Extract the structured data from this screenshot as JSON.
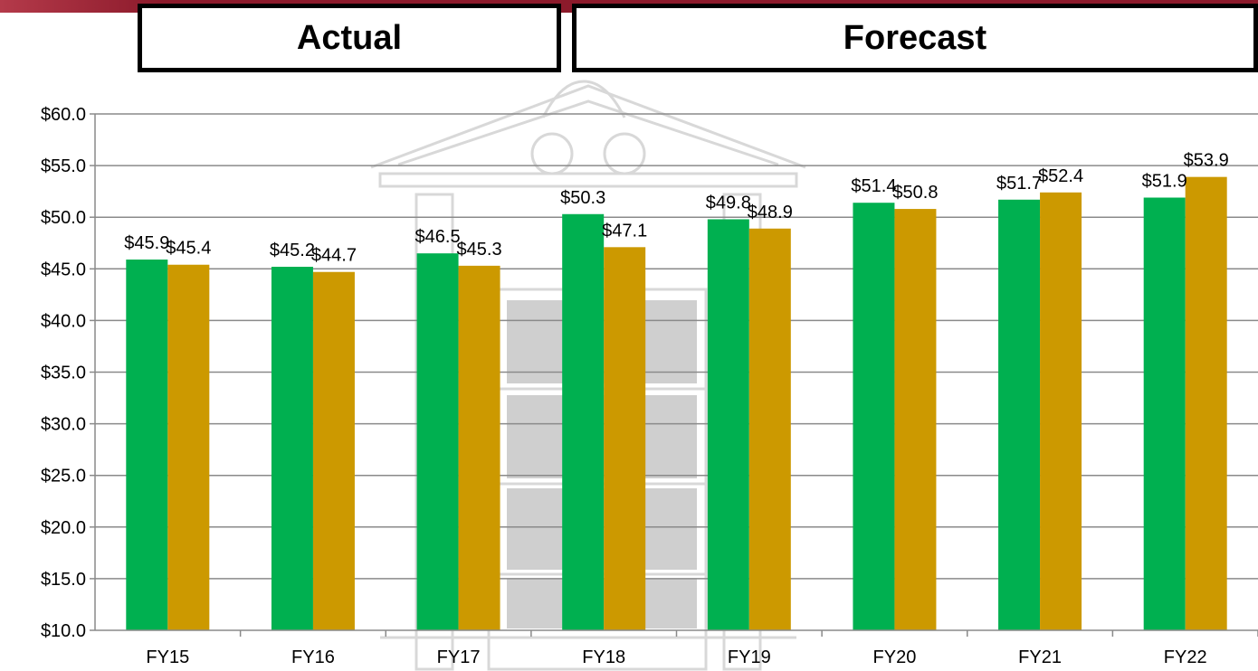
{
  "header": {
    "actual_label": "Actual",
    "forecast_label": "Forecast"
  },
  "colors": {
    "series_a": "#00b050",
    "series_b": "#cc9900",
    "topbar": "#8c1a2b",
    "grid": "#8a8a8a"
  },
  "chart_data": {
    "type": "bar",
    "categories": [
      "FY15",
      "FY16",
      "FY17",
      "FY18",
      "FY19",
      "FY20",
      "FY21",
      "FY22"
    ],
    "series": [
      {
        "values": [
          45.9,
          45.2,
          46.5,
          50.3,
          49.8,
          51.4,
          51.7,
          51.9
        ],
        "labels": [
          "$45.9",
          "$45.2",
          "$46.5",
          "$50.3",
          "$49.8",
          "$51.4",
          "$51.7",
          "$51.9"
        ]
      },
      {
        "values": [
          45.4,
          44.7,
          45.3,
          47.1,
          48.9,
          50.8,
          52.4,
          53.9
        ],
        "labels": [
          "$45.4",
          "$44.7",
          "$45.3",
          "$47.1",
          "$48.9",
          "$50.8",
          "$52.4",
          "$53.9"
        ]
      }
    ],
    "yticks": [
      10,
      15,
      20,
      25,
      30,
      35,
      40,
      45,
      50,
      55,
      60
    ],
    "ytick_labels": [
      "$10.0",
      "$15.0",
      "$20.0",
      "$25.0",
      "$30.0",
      "$35.0",
      "$40.0",
      "$45.0",
      "$50.0",
      "$55.0",
      "$60.0"
    ],
    "ylim": [
      10,
      60
    ],
    "grid": true,
    "title": "",
    "xlabel": "",
    "ylabel": ""
  }
}
